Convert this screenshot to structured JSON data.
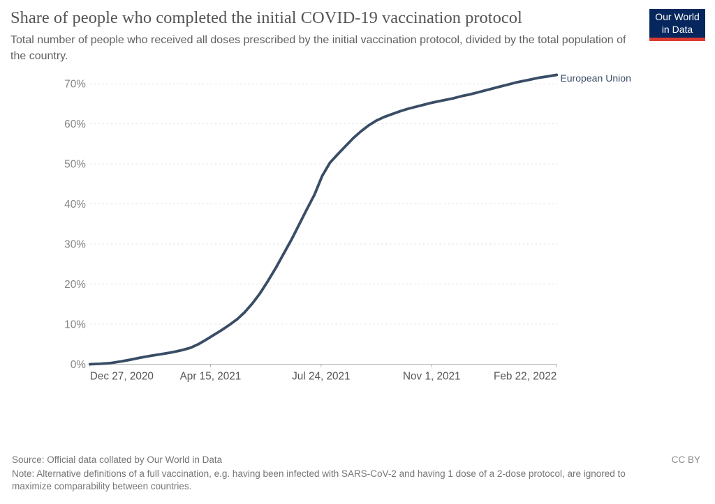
{
  "header": {
    "title": "Share of people who completed the initial COVID-19 vaccination protocol",
    "subtitle": "Total number of people who received all doses prescribed by the initial vaccination protocol, divided by the total population of the country.",
    "logo": {
      "line1": "Our World",
      "line2": "in Data"
    }
  },
  "footer": {
    "source": "Source: Official data collated by Our World in Data",
    "note": "Note: Alternative definitions of a full vaccination, e.g. having been infected with SARS-CoV-2 and having 1 dose of a 2-dose protocol, are ignored to maximize comparability between countries.",
    "license": "CC BY"
  },
  "colors": {
    "line": "#3A4D66",
    "title_text": "#555555",
    "subtitle_text": "#616161",
    "y_tick_text": "#858585",
    "x_tick_text": "#575757",
    "grid": "#dcdcdc",
    "axis": "#a8a8a8",
    "footer_text": "#757575",
    "logo_bg": "#06275D",
    "logo_red": "#DC3A32"
  },
  "chart_data": {
    "type": "line",
    "title": "Share of people who completed the initial COVID-19 vaccination protocol",
    "xlabel": "",
    "ylabel": "",
    "grid": true,
    "legend_position": "right-of-line-end",
    "ylim": [
      0,
      73
    ],
    "yticks": [
      {
        "value": 0,
        "label": "0%"
      },
      {
        "value": 10,
        "label": "10%"
      },
      {
        "value": 20,
        "label": "20%"
      },
      {
        "value": 30,
        "label": "30%"
      },
      {
        "value": 40,
        "label": "40%"
      },
      {
        "value": 50,
        "label": "50%"
      },
      {
        "value": 60,
        "label": "60%"
      },
      {
        "value": 70,
        "label": "70%"
      }
    ],
    "xticks": [
      {
        "date": "2020-12-27",
        "label": "Dec 27, 2020"
      },
      {
        "date": "2021-04-15",
        "label": "Apr 15, 2021"
      },
      {
        "date": "2021-07-24",
        "label": "Jul 24, 2021"
      },
      {
        "date": "2021-11-01",
        "label": "Nov 1, 2021"
      },
      {
        "date": "2022-02-22",
        "label": "Feb 22, 2022"
      }
    ],
    "series": [
      {
        "name": "European Union",
        "color": "#3A4D66",
        "points": [
          [
            "2020-12-27",
            0.0
          ],
          [
            "2021-01-05",
            0.1
          ],
          [
            "2021-01-15",
            0.3
          ],
          [
            "2021-01-24",
            0.7
          ],
          [
            "2021-02-01",
            1.1
          ],
          [
            "2021-02-10",
            1.6
          ],
          [
            "2021-02-20",
            2.1
          ],
          [
            "2021-03-01",
            2.5
          ],
          [
            "2021-03-10",
            2.9
          ],
          [
            "2021-03-20",
            3.5
          ],
          [
            "2021-03-28",
            4.1
          ],
          [
            "2021-04-04",
            5.0
          ],
          [
            "2021-04-11",
            6.1
          ],
          [
            "2021-04-18",
            7.3
          ],
          [
            "2021-04-25",
            8.5
          ],
          [
            "2021-05-02",
            9.8
          ],
          [
            "2021-05-09",
            11.2
          ],
          [
            "2021-05-16",
            13.0
          ],
          [
            "2021-05-23",
            15.2
          ],
          [
            "2021-05-30",
            17.8
          ],
          [
            "2021-06-06",
            20.8
          ],
          [
            "2021-06-13",
            24.0
          ],
          [
            "2021-06-20",
            27.5
          ],
          [
            "2021-06-27",
            31.0
          ],
          [
            "2021-07-04",
            34.8
          ],
          [
            "2021-07-11",
            38.6
          ],
          [
            "2021-07-18",
            42.3
          ],
          [
            "2021-07-25",
            47.0
          ],
          [
            "2021-08-01",
            50.3
          ],
          [
            "2021-08-08",
            52.4
          ],
          [
            "2021-08-15",
            54.4
          ],
          [
            "2021-08-22",
            56.4
          ],
          [
            "2021-08-29",
            58.1
          ],
          [
            "2021-09-05",
            59.6
          ],
          [
            "2021-09-12",
            60.8
          ],
          [
            "2021-09-19",
            61.7
          ],
          [
            "2021-09-26",
            62.4
          ],
          [
            "2021-10-03",
            63.1
          ],
          [
            "2021-10-10",
            63.7
          ],
          [
            "2021-10-17",
            64.2
          ],
          [
            "2021-10-24",
            64.7
          ],
          [
            "2021-10-31",
            65.2
          ],
          [
            "2021-11-07",
            65.6
          ],
          [
            "2021-11-14",
            66.0
          ],
          [
            "2021-11-21",
            66.4
          ],
          [
            "2021-11-28",
            66.9
          ],
          [
            "2021-12-05",
            67.3
          ],
          [
            "2021-12-12",
            67.8
          ],
          [
            "2021-12-19",
            68.3
          ],
          [
            "2021-12-26",
            68.8
          ],
          [
            "2022-01-02",
            69.3
          ],
          [
            "2022-01-09",
            69.8
          ],
          [
            "2022-01-16",
            70.3
          ],
          [
            "2022-01-23",
            70.7
          ],
          [
            "2022-01-30",
            71.1
          ],
          [
            "2022-02-06",
            71.5
          ],
          [
            "2022-02-13",
            71.8
          ],
          [
            "2022-02-22",
            72.2
          ]
        ]
      }
    ]
  }
}
